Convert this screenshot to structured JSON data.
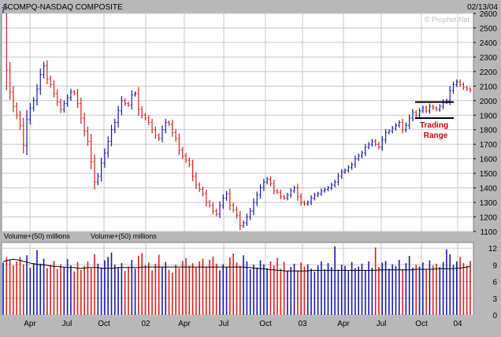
{
  "header": {
    "symbol_title": "$COMPQ-NASDAQ COMPOSITE",
    "date": "02/13/04",
    "watermark": "© Prophet.Net"
  },
  "colors": {
    "up": "#1a1aa6",
    "down": "#d42020",
    "grid": "#c8c8c8",
    "panel_bg": "#ffffff",
    "frame": "#b8b8b8",
    "annotation": "#cc0000",
    "range_line": "#000000"
  },
  "annotation": {
    "line1": "Trading",
    "line2": "Range",
    "range_top": 1990,
    "range_bottom": 1880,
    "range_start": "Oct 03",
    "range_end": "Feb 04"
  },
  "chart_data": [
    {
      "type": "line",
      "chart_kind": "ohlc",
      "title": "$COMPQ-NASDAQ COMPOSITE",
      "ylim": [
        1100,
        2600
      ],
      "ytick_step": 100,
      "grid": true,
      "x_ticks": [
        "Apr",
        "Jul",
        "Oct",
        "02",
        "Apr",
        "Jul",
        "Oct",
        "03",
        "Apr",
        "Jul",
        "Oct",
        "04"
      ],
      "series": [
        {
          "values": [
            2640,
            2210,
            2060,
            1960,
            1900,
            1830,
            1690,
            1870,
            1950,
            2000,
            2080,
            2180,
            2240,
            2150,
            2110,
            2050,
            1990,
            1940,
            1980,
            2020,
            2060,
            2050,
            1980,
            1880,
            1790,
            1720,
            1580,
            1440,
            1480,
            1570,
            1640,
            1720,
            1800,
            1850,
            1930,
            2000,
            1980,
            1970,
            2040,
            2050,
            1940,
            1900,
            1880,
            1850,
            1800,
            1760,
            1740,
            1800,
            1850,
            1840,
            1780,
            1740,
            1660,
            1620,
            1590,
            1560,
            1480,
            1420,
            1390,
            1360,
            1300,
            1280,
            1240,
            1220,
            1280,
            1330,
            1360,
            1280,
            1250,
            1210,
            1140,
            1160,
            1200,
            1240,
            1300,
            1350,
            1400,
            1440,
            1460,
            1430,
            1380,
            1370,
            1340,
            1330,
            1350,
            1380,
            1400,
            1340,
            1300,
            1290,
            1300,
            1330,
            1350,
            1360,
            1380,
            1390,
            1400,
            1420,
            1440,
            1480,
            1510,
            1520,
            1540,
            1560,
            1600,
            1620,
            1640,
            1680,
            1700,
            1720,
            1700,
            1680,
            1730,
            1780,
            1790,
            1810,
            1830,
            1850,
            1800,
            1830,
            1880,
            1920,
            1900,
            1930,
            1950,
            1930,
            1960,
            1950,
            1940,
            1960,
            1990,
            2000,
            2070,
            2110,
            2130,
            2110,
            2090,
            2080,
            2070
          ]
        }
      ]
    },
    {
      "type": "bar",
      "title": "Volume+(50) millions",
      "ylim": [
        0,
        13
      ],
      "y_ticks": [
        0,
        3,
        6,
        9,
        12
      ],
      "ma_line": true,
      "series": [
        {
          "values": [
            9.4,
            10.3,
            9.8,
            8.9,
            9.6,
            10.4,
            9.1,
            10.7,
            8.5,
            9.3,
            11.6,
            9.2,
            10.1,
            8.4,
            9.0,
            9.7,
            8.3,
            9.1,
            8.6,
            10.0,
            8.9,
            7.8,
            9.5,
            8.1,
            8.8,
            9.6,
            8.4,
            10.9,
            9.2,
            8.5,
            9.8,
            10.4,
            11.2,
            9.0,
            8.6,
            9.3,
            7.9,
            8.7,
            9.9,
            8.3,
            10.6,
            11.1,
            8.9,
            9.4,
            8.0,
            9.2,
            10.8,
            8.6,
            9.5,
            8.1,
            7.6,
            9.0,
            8.4,
            9.7,
            10.2,
            8.8,
            9.3,
            8.5,
            9.6,
            10.1,
            8.7,
            9.9,
            10.5,
            9.2,
            8.0,
            9.1,
            8.6,
            10.3,
            11.0,
            9.4,
            8.8,
            10.7,
            9.6,
            8.2,
            9.0,
            8.5,
            9.8,
            9.1,
            8.4,
            9.6,
            8.9,
            10.2,
            8.3,
            9.5,
            7.9,
            8.6,
            9.2,
            8.0,
            9.4,
            8.7,
            9.1,
            8.3,
            7.8,
            8.9,
            9.6,
            8.2,
            9.3,
            8.6,
            12.3,
            8.1,
            9.0,
            8.8,
            7.9,
            9.5,
            8.4,
            8.7,
            9.2,
            8.0,
            9.6,
            8.5,
            12.1,
            8.6,
            9.4,
            9.7,
            8.3,
            9.1,
            8.8,
            9.9,
            8.2,
            9.3,
            10.6,
            8.5,
            9.0,
            8.7,
            9.4,
            8.1,
            9.8,
            8.9,
            9.2,
            8.6,
            9.5,
            11.8,
            10.9,
            9.0,
            9.6,
            10.4,
            9.3,
            8.8,
            9.7
          ]
        },
        {
          "name": "ma",
          "values": [
            9.6,
            9.7,
            9.9,
            10.0,
            9.9,
            9.8,
            9.6,
            9.5,
            9.3,
            9.2,
            9.1,
            9.0,
            9.0,
            8.9,
            8.8,
            8.7,
            8.7,
            8.6,
            8.6,
            8.5,
            8.5,
            8.5,
            8.4,
            8.4,
            8.4,
            8.5,
            8.5,
            8.5,
            8.5,
            8.4,
            8.4,
            8.4,
            8.4,
            8.4,
            8.5,
            8.5,
            8.5,
            8.5,
            8.5,
            8.5,
            8.5,
            8.6,
            8.6,
            8.6,
            8.6,
            8.6,
            8.6,
            8.6,
            8.6,
            8.6,
            8.6,
            8.6,
            8.6,
            8.6,
            8.6,
            8.6,
            8.6,
            8.6,
            8.6,
            8.6,
            8.6,
            8.6,
            8.6,
            8.6,
            8.6,
            8.6,
            8.6,
            8.6,
            8.6,
            8.6,
            8.6,
            8.6,
            8.5,
            8.5,
            8.4,
            8.4,
            8.3,
            8.3,
            8.2,
            8.1,
            8.1,
            8.0,
            8.0,
            7.9,
            7.9,
            7.9,
            7.9,
            7.9,
            7.9,
            7.9,
            7.9,
            8.0,
            8.0,
            8.0,
            8.0,
            8.0,
            8.0,
            8.0,
            8.0,
            8.0,
            8.0,
            8.0,
            8.0,
            8.0,
            8.0,
            8.0,
            8.0,
            8.0,
            8.0,
            8.0,
            8.0,
            8.1,
            8.1,
            8.1,
            8.1,
            8.1,
            8.1,
            8.1,
            8.1,
            8.1,
            8.1,
            8.1,
            8.2,
            8.2,
            8.2,
            8.2,
            8.2,
            8.2,
            8.3,
            8.3,
            8.3,
            8.3,
            8.3,
            8.3,
            8.4,
            8.4,
            8.5,
            8.6,
            8.7
          ]
        }
      ]
    }
  ]
}
